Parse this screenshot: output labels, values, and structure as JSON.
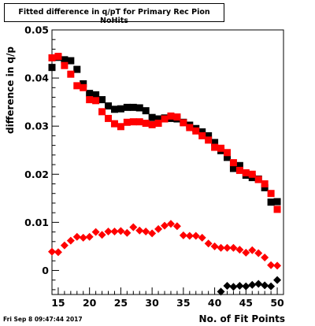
{
  "header": {
    "title": "Fitted difference in q/pT for Primary Rec Pion NoHits"
  },
  "footer": {
    "timestamp": "Fri Sep  8 09:47:44 2017"
  },
  "chart_data": {
    "type": "scatter",
    "title": "Fitted difference in q/pT for Primary Rec Pion NoHits",
    "xlabel": "No. of Fit Points",
    "ylabel": "difference in q/p",
    "xlim": [
      14,
      51
    ],
    "ylim": [
      -0.005,
      0.05
    ],
    "xticks": [
      15,
      20,
      25,
      30,
      35,
      40,
      45,
      50
    ],
    "yticks": [
      0,
      0.01,
      0.02,
      0.03,
      0.04,
      0.05
    ],
    "ytick_labels": [
      "0",
      "0.01",
      "0.02",
      "0.03",
      "0.04",
      "0.05"
    ],
    "grid": false,
    "series": [
      {
        "marker": "square",
        "color": "#000000",
        "x": [
          14,
          15,
          16,
          17,
          18,
          19,
          20,
          21,
          22,
          23,
          24,
          25,
          26,
          27,
          28,
          29,
          30,
          31,
          32,
          33,
          34,
          35,
          36,
          37,
          38,
          39,
          40,
          41,
          42,
          43,
          44,
          45,
          46,
          47,
          48,
          49,
          50
        ],
        "y": [
          0.0422,
          0.0443,
          0.0438,
          0.0436,
          0.0418,
          0.0388,
          0.0368,
          0.0365,
          0.0355,
          0.0342,
          0.0335,
          0.0336,
          0.0339,
          0.0339,
          0.0338,
          0.0332,
          0.0318,
          0.0315,
          0.0317,
          0.0316,
          0.0315,
          0.0308,
          0.0302,
          0.0295,
          0.0288,
          0.028,
          0.0266,
          0.0249,
          0.0235,
          0.0212,
          0.0218,
          0.0198,
          0.0193,
          0.019,
          0.0172,
          0.0142,
          0.0143
        ]
      },
      {
        "marker": "square",
        "color": "#ff0000",
        "x": [
          14,
          15,
          16,
          17,
          18,
          19,
          20,
          21,
          22,
          23,
          24,
          25,
          26,
          27,
          28,
          29,
          30,
          31,
          32,
          33,
          34,
          35,
          36,
          37,
          38,
          39,
          40,
          41,
          42,
          43,
          44,
          45,
          46,
          47,
          48,
          49,
          50
        ],
        "y": [
          0.0442,
          0.0445,
          0.0426,
          0.0408,
          0.0384,
          0.038,
          0.0355,
          0.0353,
          0.033,
          0.0316,
          0.0305,
          0.0299,
          0.0308,
          0.0309,
          0.0309,
          0.0306,
          0.0303,
          0.0306,
          0.0315,
          0.0321,
          0.0319,
          0.0307,
          0.0297,
          0.029,
          0.028,
          0.0271,
          0.0256,
          0.0254,
          0.0245,
          0.0224,
          0.0208,
          0.0203,
          0.02,
          0.0189,
          0.018,
          0.016,
          0.0127
        ]
      },
      {
        "marker": "diamond",
        "color": "#ff0000",
        "x": [
          14,
          15,
          16,
          17,
          18,
          19,
          20,
          21,
          22,
          23,
          24,
          25,
          26,
          27,
          28,
          29,
          30,
          31,
          32,
          33,
          34,
          35,
          36,
          37,
          38,
          39,
          40,
          41,
          42,
          43,
          44,
          45,
          46,
          47,
          48,
          49,
          50
        ],
        "y": [
          0.0039,
          0.0038,
          0.0052,
          0.0062,
          0.007,
          0.0068,
          0.007,
          0.008,
          0.0074,
          0.0081,
          0.0081,
          0.0082,
          0.0078,
          0.009,
          0.0083,
          0.0081,
          0.0077,
          0.0086,
          0.0093,
          0.0097,
          0.0092,
          0.0073,
          0.0072,
          0.0072,
          0.0068,
          0.0056,
          0.005,
          0.0047,
          0.0047,
          0.0047,
          0.0043,
          0.0037,
          0.0042,
          0.0036,
          0.0027,
          0.0011,
          0.001
        ]
      },
      {
        "marker": "diamond",
        "color": "#000000",
        "x": [
          41,
          42,
          43,
          44,
          45,
          46,
          47,
          48,
          49,
          50
        ],
        "y": [
          -0.0044,
          -0.0032,
          -0.0034,
          -0.0032,
          -0.0033,
          -0.003,
          -0.0028,
          -0.0031,
          -0.0033,
          -0.002
        ]
      }
    ]
  }
}
